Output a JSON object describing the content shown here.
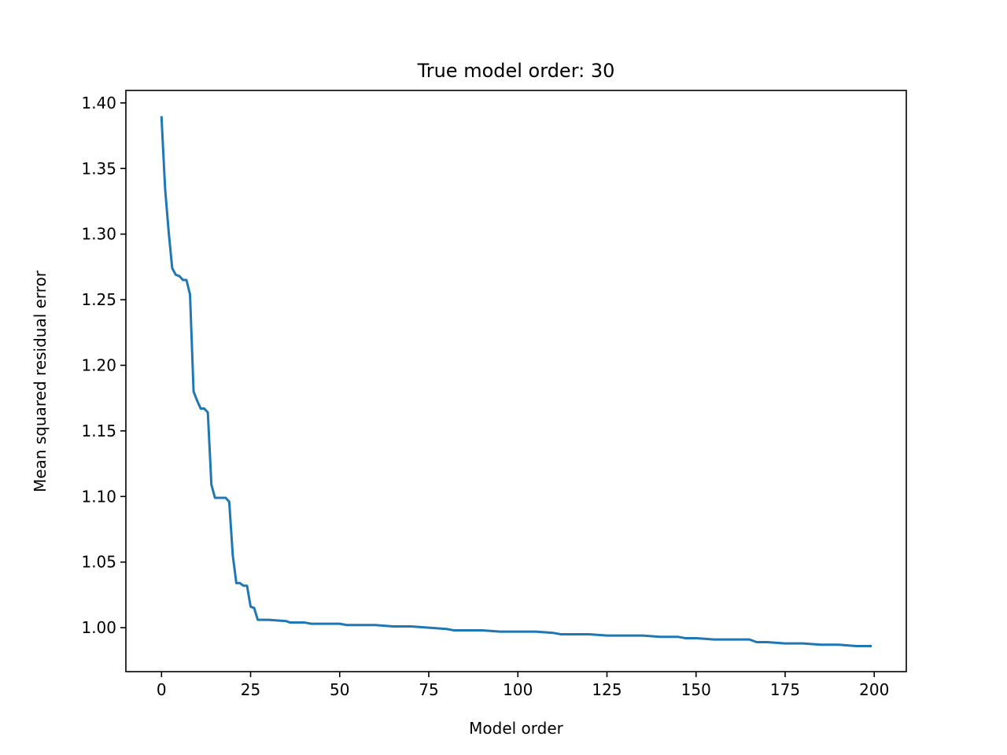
{
  "chart_data": {
    "type": "line",
    "title": "True model order: 30",
    "xlabel": "Model order",
    "ylabel": "Mean squared residual error",
    "xlim": [
      -10,
      209
    ],
    "ylim": [
      0.9665,
      1.4095
    ],
    "xticks": [
      0,
      25,
      50,
      75,
      100,
      125,
      150,
      175,
      200
    ],
    "xtick_labels": [
      "0",
      "25",
      "50",
      "75",
      "100",
      "125",
      "150",
      "175",
      "200"
    ],
    "yticks": [
      1.0,
      1.05,
      1.1,
      1.15,
      1.2,
      1.25,
      1.3,
      1.35,
      1.4
    ],
    "ytick_labels": [
      "1.00",
      "1.05",
      "1.10",
      "1.15",
      "1.20",
      "1.25",
      "1.30",
      "1.35",
      "1.40"
    ],
    "grid": false,
    "series": [
      {
        "color": "#1f77b4",
        "x": [
          0,
          1,
          2,
          3,
          4,
          5,
          6,
          7,
          8,
          9,
          10,
          11,
          12,
          13,
          14,
          15,
          16,
          17,
          18,
          19,
          20,
          21,
          22,
          23,
          24,
          25,
          26,
          27,
          28,
          30,
          35,
          36,
          40,
          42,
          43,
          45,
          50,
          52,
          55,
          60,
          65,
          70,
          75,
          80,
          82,
          85,
          90,
          95,
          100,
          105,
          110,
          112,
          115,
          120,
          125,
          130,
          135,
          140,
          145,
          147,
          150,
          155,
          160,
          165,
          167,
          170,
          175,
          180,
          185,
          190,
          195,
          199
        ],
        "y": [
          1.389,
          1.335,
          1.302,
          1.274,
          1.269,
          1.268,
          1.265,
          1.265,
          1.254,
          1.18,
          1.173,
          1.167,
          1.167,
          1.164,
          1.109,
          1.099,
          1.099,
          1.099,
          1.099,
          1.096,
          1.055,
          1.034,
          1.034,
          1.032,
          1.032,
          1.016,
          1.015,
          1.006,
          1.006,
          1.006,
          1.005,
          1.004,
          1.004,
          1.003,
          1.003,
          1.003,
          1.003,
          1.002,
          1.002,
          1.002,
          1.001,
          1.001,
          1.0,
          0.999,
          0.998,
          0.998,
          0.998,
          0.997,
          0.997,
          0.997,
          0.996,
          0.995,
          0.995,
          0.995,
          0.994,
          0.994,
          0.994,
          0.993,
          0.993,
          0.992,
          0.992,
          0.991,
          0.991,
          0.991,
          0.989,
          0.989,
          0.988,
          0.988,
          0.987,
          0.987,
          0.986,
          0.986
        ]
      }
    ]
  }
}
